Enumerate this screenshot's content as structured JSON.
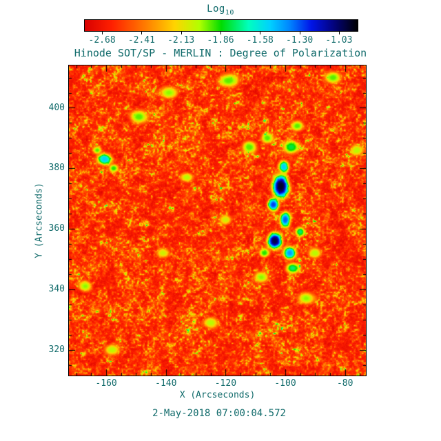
{
  "page": {
    "bg": "#ffffff",
    "text_color": "#116b6b",
    "frame_color": "#000000"
  },
  "colorbar": {
    "label": "Log",
    "label_sub": "10",
    "ticks": [
      "-2.68",
      "-2.41",
      "-2.13",
      "-1.86",
      "-1.58",
      "-1.30",
      "-1.03"
    ]
  },
  "title": "Hinode SOT/SP - MERLIN : Degree of Polarization",
  "x_axis": {
    "label": "X (Arcseconds)",
    "ticks": [
      -160,
      -140,
      -120,
      -100,
      -80
    ]
  },
  "y_axis": {
    "label": "Y (Arcseconds)",
    "ticks": [
      320,
      340,
      360,
      380,
      400
    ]
  },
  "timestamp": "2-May-2018 07:00:04.572",
  "chart_data": {
    "type": "heatmap",
    "title": "Hinode SOT/SP - MERLIN : Degree of Polarization",
    "colorbar_label": "Log10",
    "colorbar_ticks": [
      -2.68,
      -2.41,
      -2.13,
      -1.86,
      -1.58,
      -1.3,
      -1.03
    ],
    "xlabel": "X (Arcseconds)",
    "ylabel": "Y (Arcseconds)",
    "x_range": [
      -172.5,
      -73
    ],
    "y_range": [
      311.5,
      414
    ],
    "value_range": [
      -2.95,
      -0.89
    ],
    "background_value": -2.75,
    "grid": false,
    "legend_position": "top-colorbar",
    "colormap_stops": [
      [
        0.0,
        "#d80000"
      ],
      [
        0.1,
        "#ff2000"
      ],
      [
        0.22,
        "#ff7a00"
      ],
      [
        0.33,
        "#ffd400"
      ],
      [
        0.42,
        "#b2ff00"
      ],
      [
        0.5,
        "#00dc00"
      ],
      [
        0.6,
        "#00ffbe"
      ],
      [
        0.68,
        "#00d0ff"
      ],
      [
        0.75,
        "#0086ff"
      ],
      [
        0.83,
        "#0014e8"
      ],
      [
        0.91,
        "#030380"
      ],
      [
        1.0,
        "#000000"
      ]
    ],
    "features": [
      {
        "name": "pore-core-black-upper",
        "x": -101.5,
        "y": 374,
        "rx": 2.8,
        "ry": 4.0,
        "value": -0.95
      },
      {
        "name": "pore-bridge",
        "x": -104,
        "y": 368,
        "rx": 2.0,
        "ry": 2.2,
        "value": -1.3
      },
      {
        "name": "pore-chain",
        "x": -100,
        "y": 363,
        "rx": 1.8,
        "ry": 2.6,
        "value": -1.35
      },
      {
        "name": "pore-core-black-lower",
        "x": -103.5,
        "y": 356,
        "rx": 2.6,
        "ry": 2.8,
        "value": -1.0
      },
      {
        "name": "pore-blue-knot",
        "x": -98.5,
        "y": 352,
        "rx": 2.2,
        "ry": 2.2,
        "value": -1.45
      },
      {
        "name": "pore-cyan-tail",
        "x": -97.5,
        "y": 347,
        "rx": 2.4,
        "ry": 1.8,
        "value": -1.8
      },
      {
        "name": "pore-blue-top",
        "x": -100.5,
        "y": 380.5,
        "rx": 1.8,
        "ry": 2.2,
        "value": -1.55
      },
      {
        "name": "pore-green-top",
        "x": -98,
        "y": 387,
        "rx": 2.6,
        "ry": 2.2,
        "value": -1.85
      },
      {
        "name": "green-knot-nw",
        "x": -106,
        "y": 390,
        "rx": 2.0,
        "ry": 1.8,
        "value": -2.0
      },
      {
        "name": "cyan-speck-e",
        "x": -95,
        "y": 359,
        "rx": 1.6,
        "ry": 1.6,
        "value": -1.8
      },
      {
        "name": "green-speck-w",
        "x": -107,
        "y": 352,
        "rx": 1.8,
        "ry": 1.5,
        "value": -1.95
      },
      {
        "name": "left-blue-patch",
        "x": -160.5,
        "y": 383,
        "rx": 2.6,
        "ry": 2.0,
        "value": -1.55
      },
      {
        "name": "left-green-patch",
        "x": -157.5,
        "y": 380,
        "rx": 1.6,
        "ry": 1.4,
        "value": -1.95
      },
      {
        "name": "left-green-patch-2",
        "x": -163,
        "y": 386,
        "rx": 1.5,
        "ry": 1.3,
        "value": -2.0
      },
      {
        "name": "green-cluster-1",
        "x": -149,
        "y": 397,
        "rx": 3.0,
        "ry": 2.2,
        "value": -2.0
      },
      {
        "name": "green-cluster-2",
        "x": -139,
        "y": 405,
        "rx": 3.0,
        "ry": 2.0,
        "value": -2.05
      },
      {
        "name": "green-cluster-3",
        "x": -119,
        "y": 409,
        "rx": 3.5,
        "ry": 2.2,
        "value": -2.0
      },
      {
        "name": "green-cluster-4",
        "x": -112,
        "y": 387,
        "rx": 2.5,
        "ry": 2.0,
        "value": -2.0
      },
      {
        "name": "green-cluster-5",
        "x": -93,
        "y": 337,
        "rx": 2.8,
        "ry": 2.0,
        "value": -2.05
      },
      {
        "name": "green-cluster-6",
        "x": -90,
        "y": 352,
        "rx": 2.2,
        "ry": 1.8,
        "value": -2.1
      },
      {
        "name": "green-cluster-7",
        "x": -167,
        "y": 341,
        "rx": 2.2,
        "ry": 1.8,
        "value": -2.05
      },
      {
        "name": "green-cluster-8",
        "x": -125,
        "y": 329,
        "rx": 2.5,
        "ry": 1.8,
        "value": -2.1
      },
      {
        "name": "green-cluster-9",
        "x": -84,
        "y": 410,
        "rx": 2.6,
        "ry": 2.0,
        "value": -2.0
      },
      {
        "name": "green-cluster-10",
        "x": -76,
        "y": 386,
        "rx": 2.2,
        "ry": 1.8,
        "value": -2.1
      },
      {
        "name": "green-cluster-11",
        "x": -96,
        "y": 394,
        "rx": 2.2,
        "ry": 1.8,
        "value": -2.0
      },
      {
        "name": "green-cluster-12",
        "x": -108,
        "y": 344,
        "rx": 2.2,
        "ry": 1.8,
        "value": -2.05
      },
      {
        "name": "green-cluster-13",
        "x": -158,
        "y": 320,
        "rx": 2.4,
        "ry": 1.8,
        "value": -2.1
      },
      {
        "name": "green-cluster-14",
        "x": -141,
        "y": 352,
        "rx": 2.2,
        "ry": 1.6,
        "value": -2.15
      },
      {
        "name": "green-cluster-15",
        "x": -120,
        "y": 363,
        "rx": 2.0,
        "ry": 1.6,
        "value": -2.15
      },
      {
        "name": "green-cluster-16",
        "x": -133,
        "y": 377,
        "rx": 2.2,
        "ry": 1.6,
        "value": -2.1
      }
    ],
    "texture": {
      "seed": 7,
      "speckle_scale": 0.35,
      "cluster_scale": 0.08,
      "speckle_sharpness": 3.2,
      "green_cap": -1.72,
      "cap_compress": 0.25,
      "grain": 0.08
    },
    "ticks": {
      "x_minor_step": 5,
      "y_minor_step": 5,
      "major_len": 9,
      "minor_len": 4
    }
  }
}
